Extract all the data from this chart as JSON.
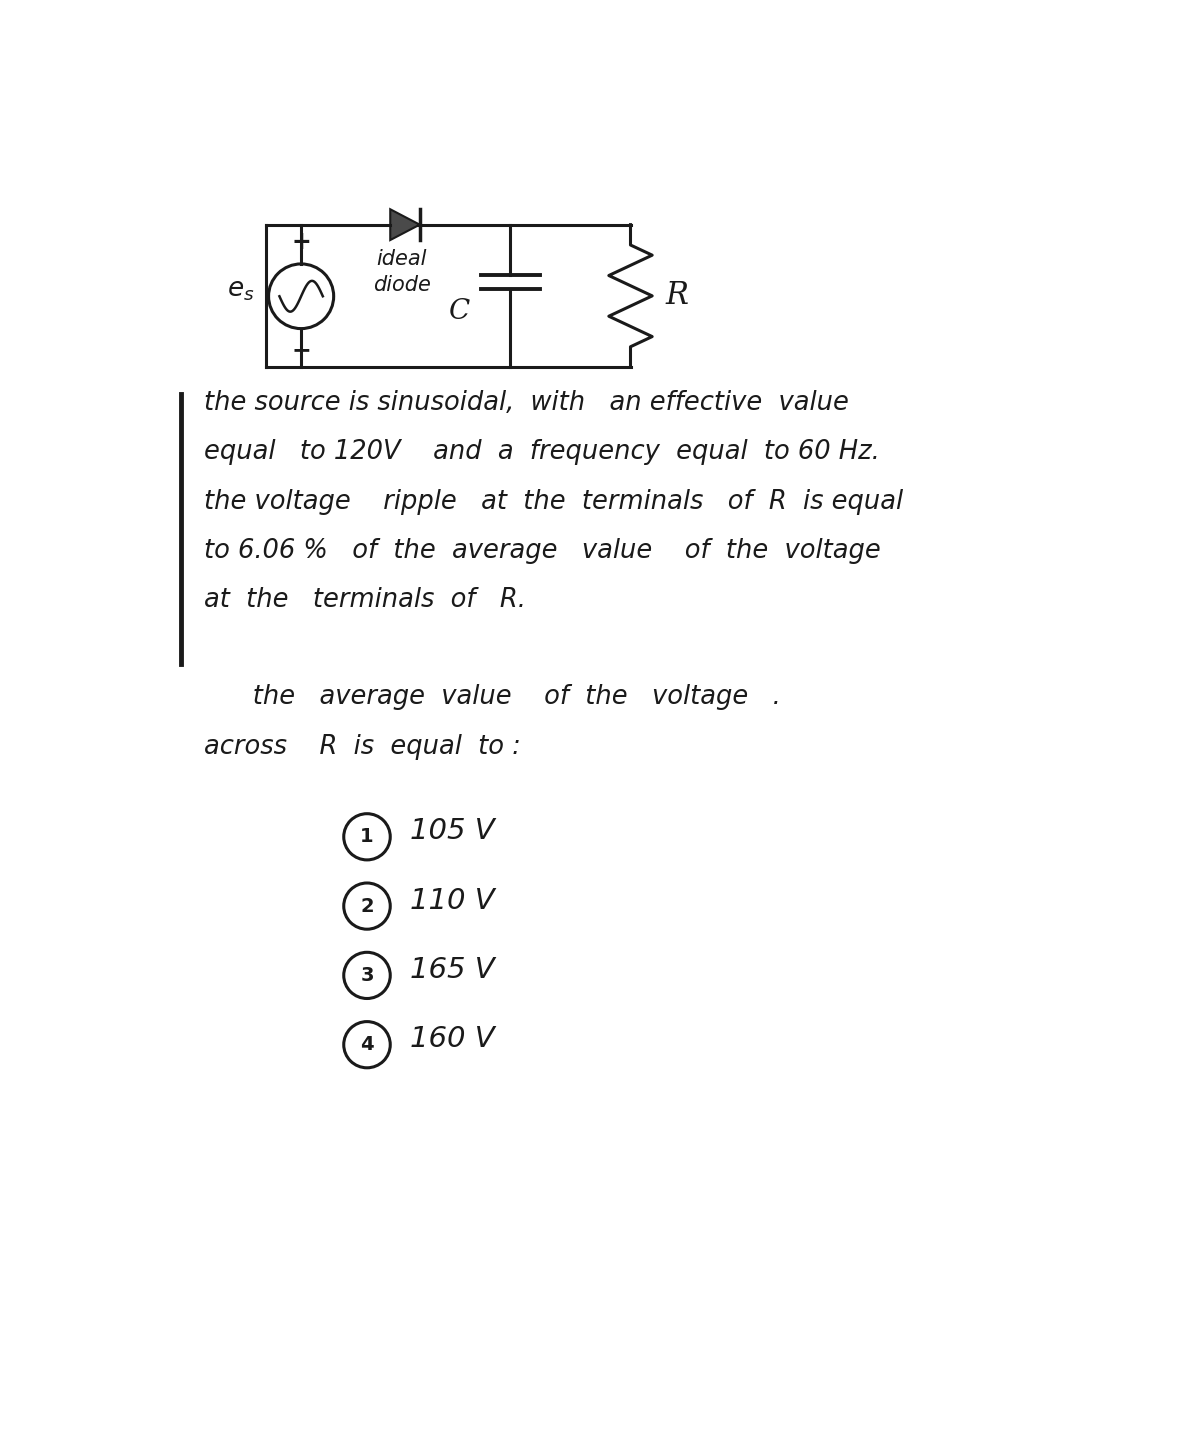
{
  "bg_color": "#ffffff",
  "line_color": "#1a1a1a",
  "text_color": "#1a1a1a",
  "problem_lines": [
    "the source is sinusoidal,  with   an effective  value",
    "equal   to 120V    and  a  frequency  equal  to 60 Hz.",
    "the voltage    ripple   at  the  terminals   of  R  is equal",
    "to 6.06 %   of  the  average   value    of  the  voltage",
    "at  the   terminals  of   R."
  ],
  "question_lines": [
    "      the   average  value    of  the   voltage   .",
    "across    R  is  equal  to :"
  ],
  "choices": [
    {
      "num": "1",
      "text": "105 V"
    },
    {
      "num": "2",
      "text": "110 V"
    },
    {
      "num": "3",
      "text": "165 V"
    },
    {
      "num": "4",
      "text": "160 V"
    }
  ]
}
